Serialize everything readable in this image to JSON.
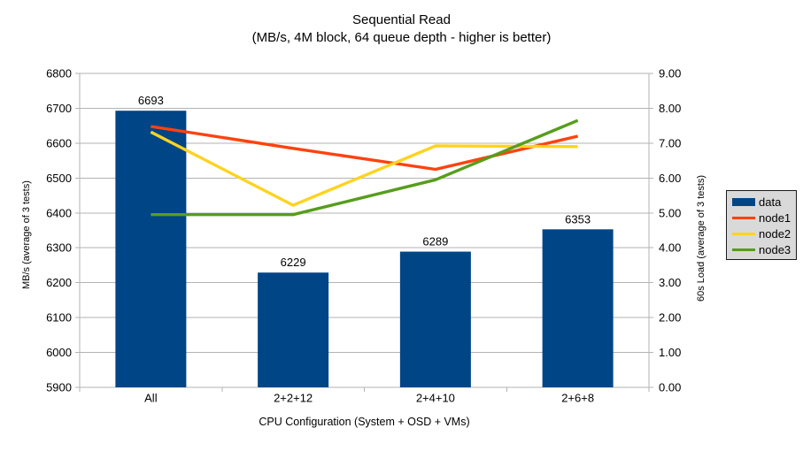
{
  "chart_data": {
    "type": "bar+line combo",
    "title": "Sequential Read",
    "subtitle": "(MB/s, 4M block, 64 queue depth - higher is better)",
    "categories": [
      "All",
      "2+2+12",
      "2+4+10",
      "2+6+8"
    ],
    "xlabel": "CPU Configuration (System + OSD + VMs)",
    "left_axis": {
      "label": "MB/s (average of 3 tests)",
      "min": 5900,
      "max": 6800,
      "step": 100,
      "tick_format": "int"
    },
    "right_axis": {
      "label": "60s Load (average of 3 tests)",
      "min": 0,
      "max": 9,
      "step": 1,
      "tick_format": "2dp"
    },
    "series": [
      {
        "name": "data",
        "type": "bar",
        "axis": "left",
        "color": "#004586",
        "values": [
          6693,
          6229,
          6289,
          6353
        ],
        "show_labels": true
      },
      {
        "name": "node1",
        "type": "line",
        "axis": "right",
        "color": "#ff420e",
        "values": [
          7.48,
          6.85,
          6.25,
          7.2
        ]
      },
      {
        "name": "node2",
        "type": "line",
        "axis": "right",
        "color": "#ffd320",
        "values": [
          7.32,
          5.22,
          6.92,
          6.9
        ]
      },
      {
        "name": "node3",
        "type": "line",
        "axis": "right",
        "color": "#579d1c",
        "values": [
          4.95,
          4.95,
          5.95,
          7.65
        ]
      }
    ],
    "legend": {
      "position": "right",
      "items": [
        "data",
        "node1",
        "node2",
        "node3"
      ]
    },
    "grid": true,
    "colors": {
      "grid": "#b3b3b3",
      "axis": "#b3b3b3",
      "text": "#000000",
      "legend_bg": "#d9d9d9",
      "legend_border": "#1b1b1b",
      "background": "#ffffff"
    }
  }
}
